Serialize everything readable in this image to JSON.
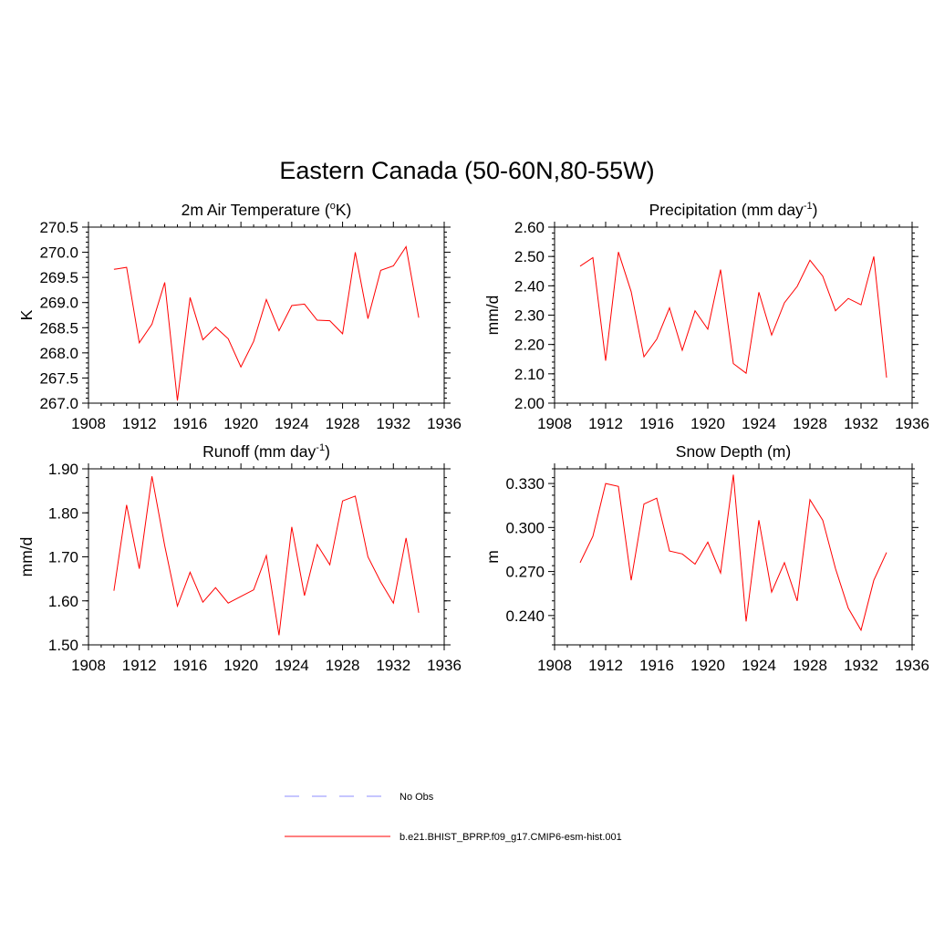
{
  "figure": {
    "title": "Eastern Canada (50-60N,80-55W)"
  },
  "legend": {
    "entries": [
      {
        "label": "No Obs",
        "color": "#8c8cff",
        "style": "dashed"
      },
      {
        "label": "b.e21.BHIST_BPRP.f09_g17.CMIP6-esm-hist.001",
        "color": "#ff0000",
        "style": "solid"
      }
    ]
  },
  "chart_data": [
    {
      "type": "line",
      "title": "2m Air Temperature (",
      "title_sup": "o",
      "title_after": "K)",
      "ylabel": "K",
      "xlim": [
        1908,
        1936
      ],
      "ylim": [
        267.0,
        270.5
      ],
      "xticks": [
        1908,
        1912,
        1916,
        1920,
        1924,
        1928,
        1932,
        1936
      ],
      "yticks": [
        "267.0",
        "267.5",
        "268.0",
        "268.5",
        "269.0",
        "269.5",
        "270.0",
        "270.5"
      ],
      "y_minor": 0.1,
      "x": [
        1910,
        1911,
        1912,
        1913,
        1914,
        1915,
        1916,
        1917,
        1918,
        1919,
        1920,
        1921,
        1922,
        1923,
        1924,
        1925,
        1926,
        1927,
        1928,
        1929,
        1930,
        1931,
        1932,
        1933,
        1934
      ],
      "series": [
        {
          "color": "#ff0000",
          "values": [
            269.66,
            269.7,
            268.2,
            268.57,
            269.4,
            267.05,
            269.1,
            268.26,
            268.51,
            268.28,
            267.72,
            268.23,
            269.06,
            268.44,
            268.94,
            268.97,
            268.65,
            268.64,
            268.38,
            270.0,
            268.68,
            269.64,
            269.73,
            270.11,
            268.7
          ]
        }
      ]
    },
    {
      "type": "line",
      "title": "Precipitation (mm day",
      "title_sup": "-1",
      "title_after": ")",
      "ylabel": "mm/d",
      "xlim": [
        1908,
        1936
      ],
      "ylim": [
        2.0,
        2.6
      ],
      "xticks": [
        1908,
        1912,
        1916,
        1920,
        1924,
        1928,
        1932,
        1936
      ],
      "yticks": [
        "2.00",
        "2.10",
        "2.20",
        "2.30",
        "2.40",
        "2.50",
        "2.60"
      ],
      "y_minor": 0.02,
      "x": [
        1910,
        1911,
        1912,
        1913,
        1914,
        1915,
        1916,
        1917,
        1918,
        1919,
        1920,
        1921,
        1922,
        1923,
        1924,
        1925,
        1926,
        1927,
        1928,
        1929,
        1930,
        1931,
        1932,
        1933,
        1934
      ],
      "series": [
        {
          "color": "#ff0000",
          "values": [
            2.467,
            2.496,
            2.145,
            2.515,
            2.38,
            2.158,
            2.218,
            2.325,
            2.18,
            2.315,
            2.252,
            2.455,
            2.135,
            2.102,
            2.378,
            2.232,
            2.342,
            2.398,
            2.487,
            2.433,
            2.315,
            2.357,
            2.335,
            2.5,
            2.087
          ]
        }
      ]
    },
    {
      "type": "line",
      "title": "Runoff (mm day",
      "title_sup": "-1",
      "title_after": ")",
      "ylabel": "mm/d",
      "xlim": [
        1908,
        1936
      ],
      "ylim": [
        1.5,
        1.9
      ],
      "xticks": [
        1908,
        1912,
        1916,
        1920,
        1924,
        1928,
        1932,
        1936
      ],
      "yticks": [
        "1.50",
        "1.60",
        "1.70",
        "1.80",
        "1.90"
      ],
      "y_minor": 0.02,
      "x": [
        1910,
        1911,
        1912,
        1913,
        1914,
        1915,
        1916,
        1917,
        1918,
        1919,
        1920,
        1921,
        1922,
        1923,
        1924,
        1925,
        1926,
        1927,
        1928,
        1929,
        1930,
        1931,
        1932,
        1933,
        1934
      ],
      "series": [
        {
          "color": "#ff0000",
          "values": [
            1.623,
            1.818,
            1.673,
            1.883,
            1.725,
            1.588,
            1.665,
            1.597,
            1.63,
            1.595,
            1.61,
            1.625,
            1.703,
            1.522,
            1.768,
            1.612,
            1.728,
            1.682,
            1.827,
            1.838,
            1.7,
            1.643,
            1.595,
            1.743,
            1.573
          ]
        }
      ]
    },
    {
      "type": "line",
      "title": "Snow Depth (m)",
      "title_sup": "",
      "title_after": "",
      "ylabel": "m",
      "xlim": [
        1908,
        1936
      ],
      "ylim": [
        0.22,
        0.34
      ],
      "xticks": [
        1908,
        1912,
        1916,
        1920,
        1924,
        1928,
        1932,
        1936
      ],
      "yticks": [
        "0.240",
        "0.270",
        "0.300",
        "0.330"
      ],
      "ytick_values": [
        0.24,
        0.27,
        0.3,
        0.33
      ],
      "y_minor": 0.006,
      "x": [
        1910,
        1911,
        1912,
        1913,
        1914,
        1915,
        1916,
        1917,
        1918,
        1919,
        1920,
        1921,
        1922,
        1923,
        1924,
        1925,
        1926,
        1927,
        1928,
        1929,
        1930,
        1931,
        1932,
        1933,
        1934
      ],
      "series": [
        {
          "color": "#ff0000",
          "values": [
            0.276,
            0.294,
            0.33,
            0.328,
            0.264,
            0.316,
            0.32,
            0.284,
            0.282,
            0.275,
            0.29,
            0.269,
            0.336,
            0.236,
            0.305,
            0.256,
            0.276,
            0.25,
            0.319,
            0.305,
            0.272,
            0.245,
            0.23,
            0.264,
            0.283
          ]
        }
      ]
    }
  ]
}
